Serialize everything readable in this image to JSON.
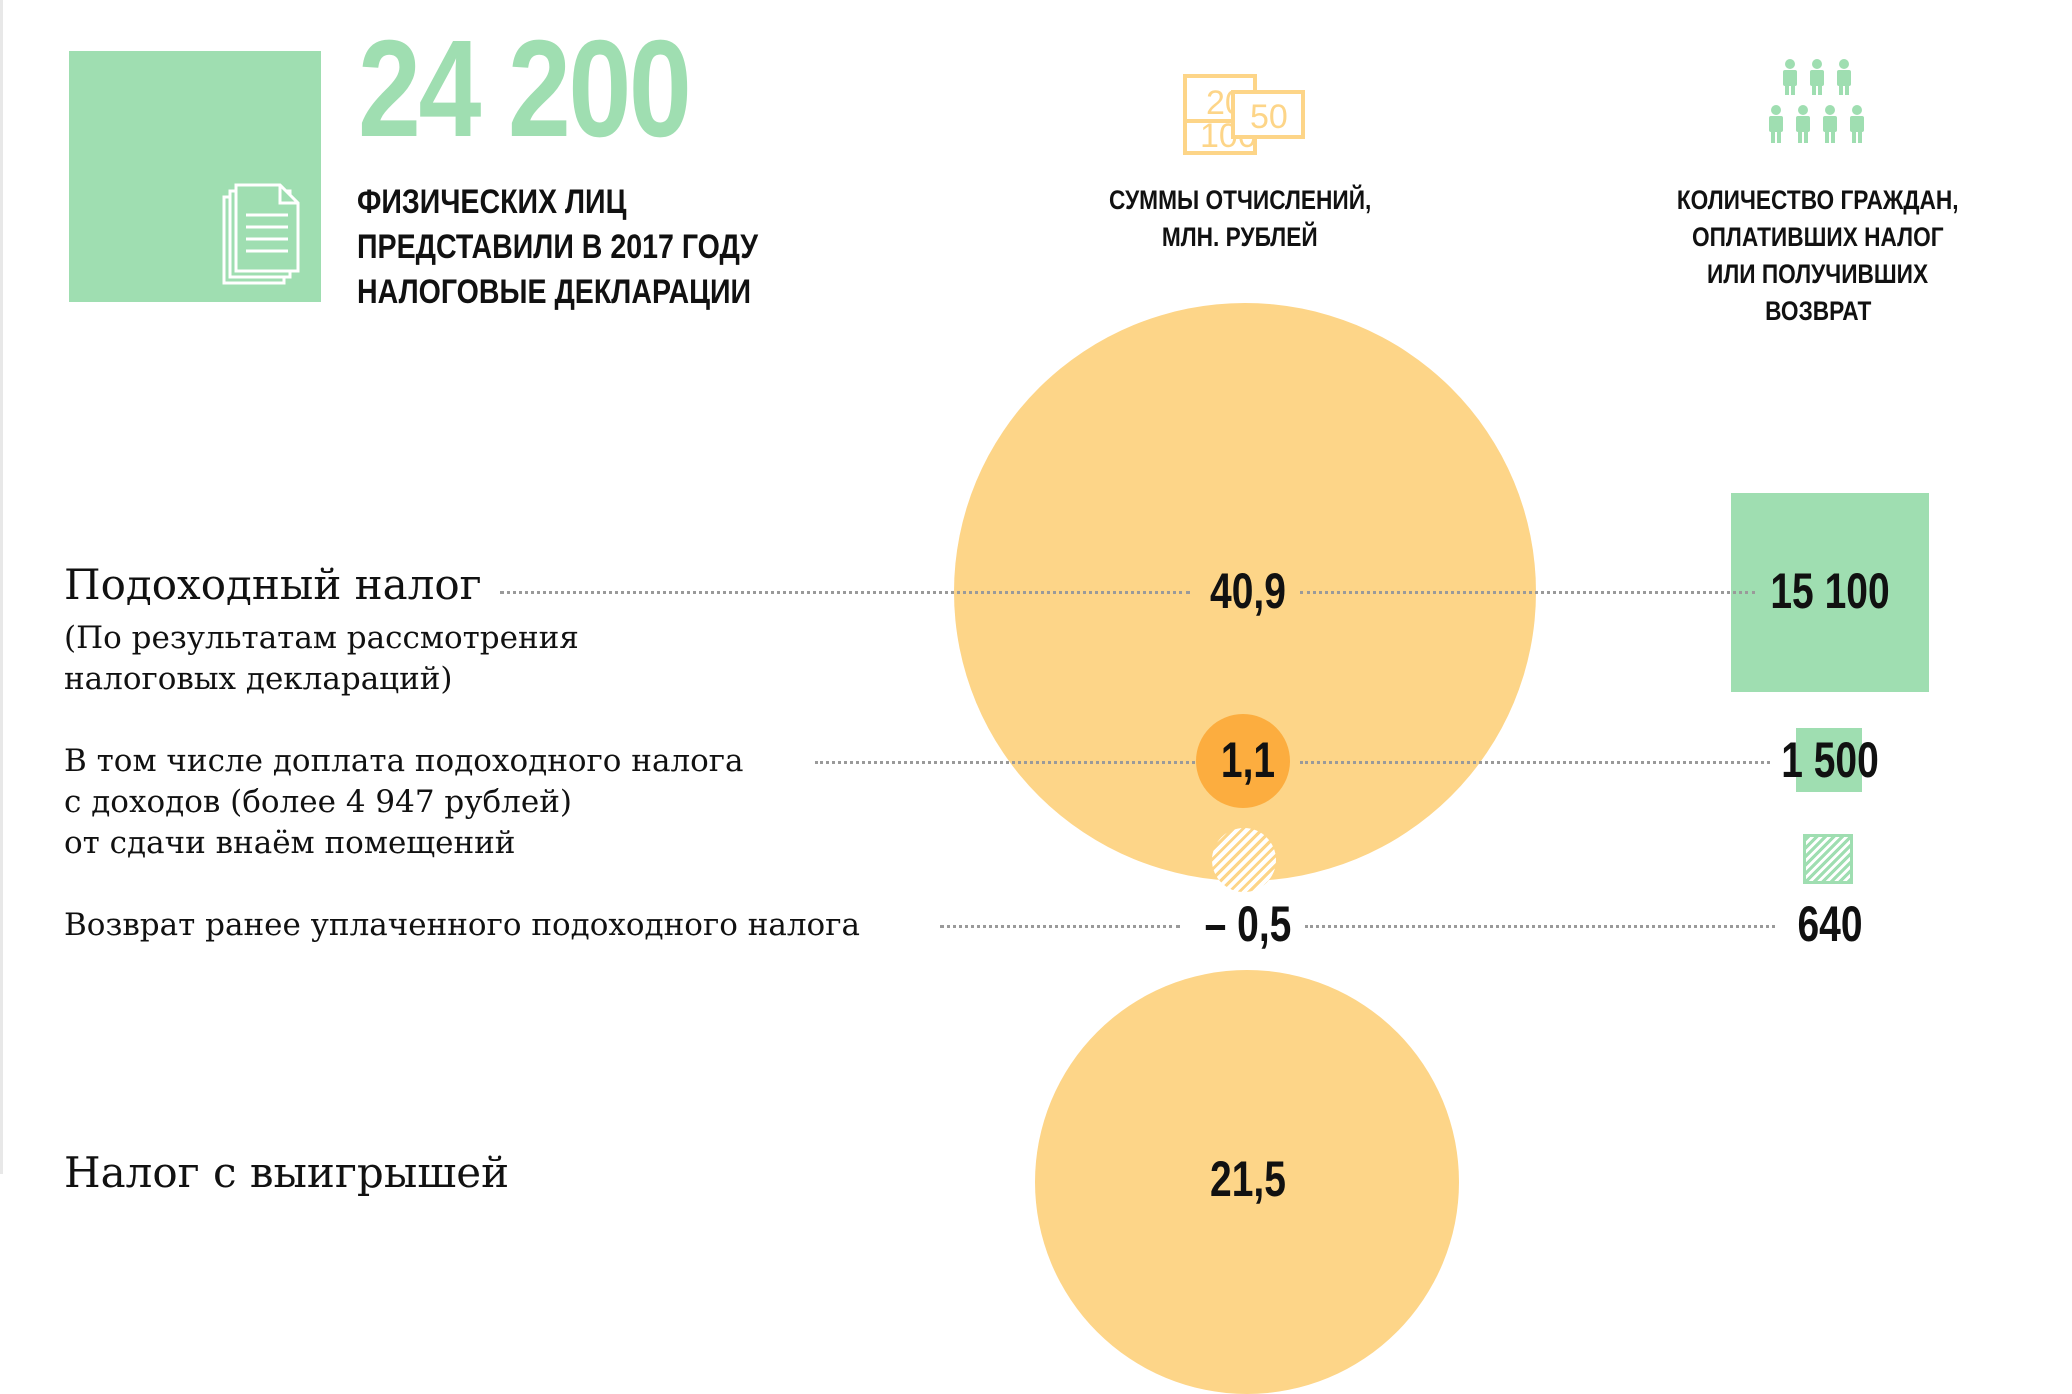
{
  "header": {
    "big_number": "24 200",
    "description_lines": [
      "ФИЗИЧЕСКИХ ЛИЦ",
      "ПРЕДСТАВИЛИ В 2017 ГОДУ",
      "НАЛОГОВЫЕ ДЕКЛАРАЦИИ"
    ]
  },
  "columns": {
    "sums_title_lines": [
      "СУММЫ ОТЧИСЛЕНИЙ,",
      "МЛН. РУБЛЕЙ"
    ],
    "count_title_lines": [
      "КОЛИЧЕСТВО ГРАЖДАН,",
      "ОПЛАТИВШИХ НАЛОГ",
      "ИЛИ ПОЛУЧИВШИХ",
      "ВОЗВРАТ"
    ]
  },
  "banknotes": [
    "20",
    "50",
    "100"
  ],
  "rows": [
    {
      "label": "Подоходный налог",
      "sublabel_lines": [
        "(По результатам рассмотрения",
        "налоговых деклараций)"
      ],
      "sum": "40,9",
      "count": "15 100"
    },
    {
      "label_lines": [
        "В том числе доплата подоходного налога",
        "с доходов (более 4 947 рублей)",
        "от сдачи внаём помещений"
      ],
      "sum": "1,1",
      "count": "1 500"
    },
    {
      "label": "Возврат ранее уплаченного подоходного налога",
      "sum": "– 0,5",
      "count": "640"
    },
    {
      "label": "Налог с выигрышей",
      "sum": "21,5"
    }
  ],
  "colors": {
    "green": "#9fdeb1",
    "light_orange": "#fdd588",
    "dark_orange": "#fcad3f"
  },
  "icons": [
    "document-icon",
    "banknotes-icon",
    "people-icon"
  ]
}
